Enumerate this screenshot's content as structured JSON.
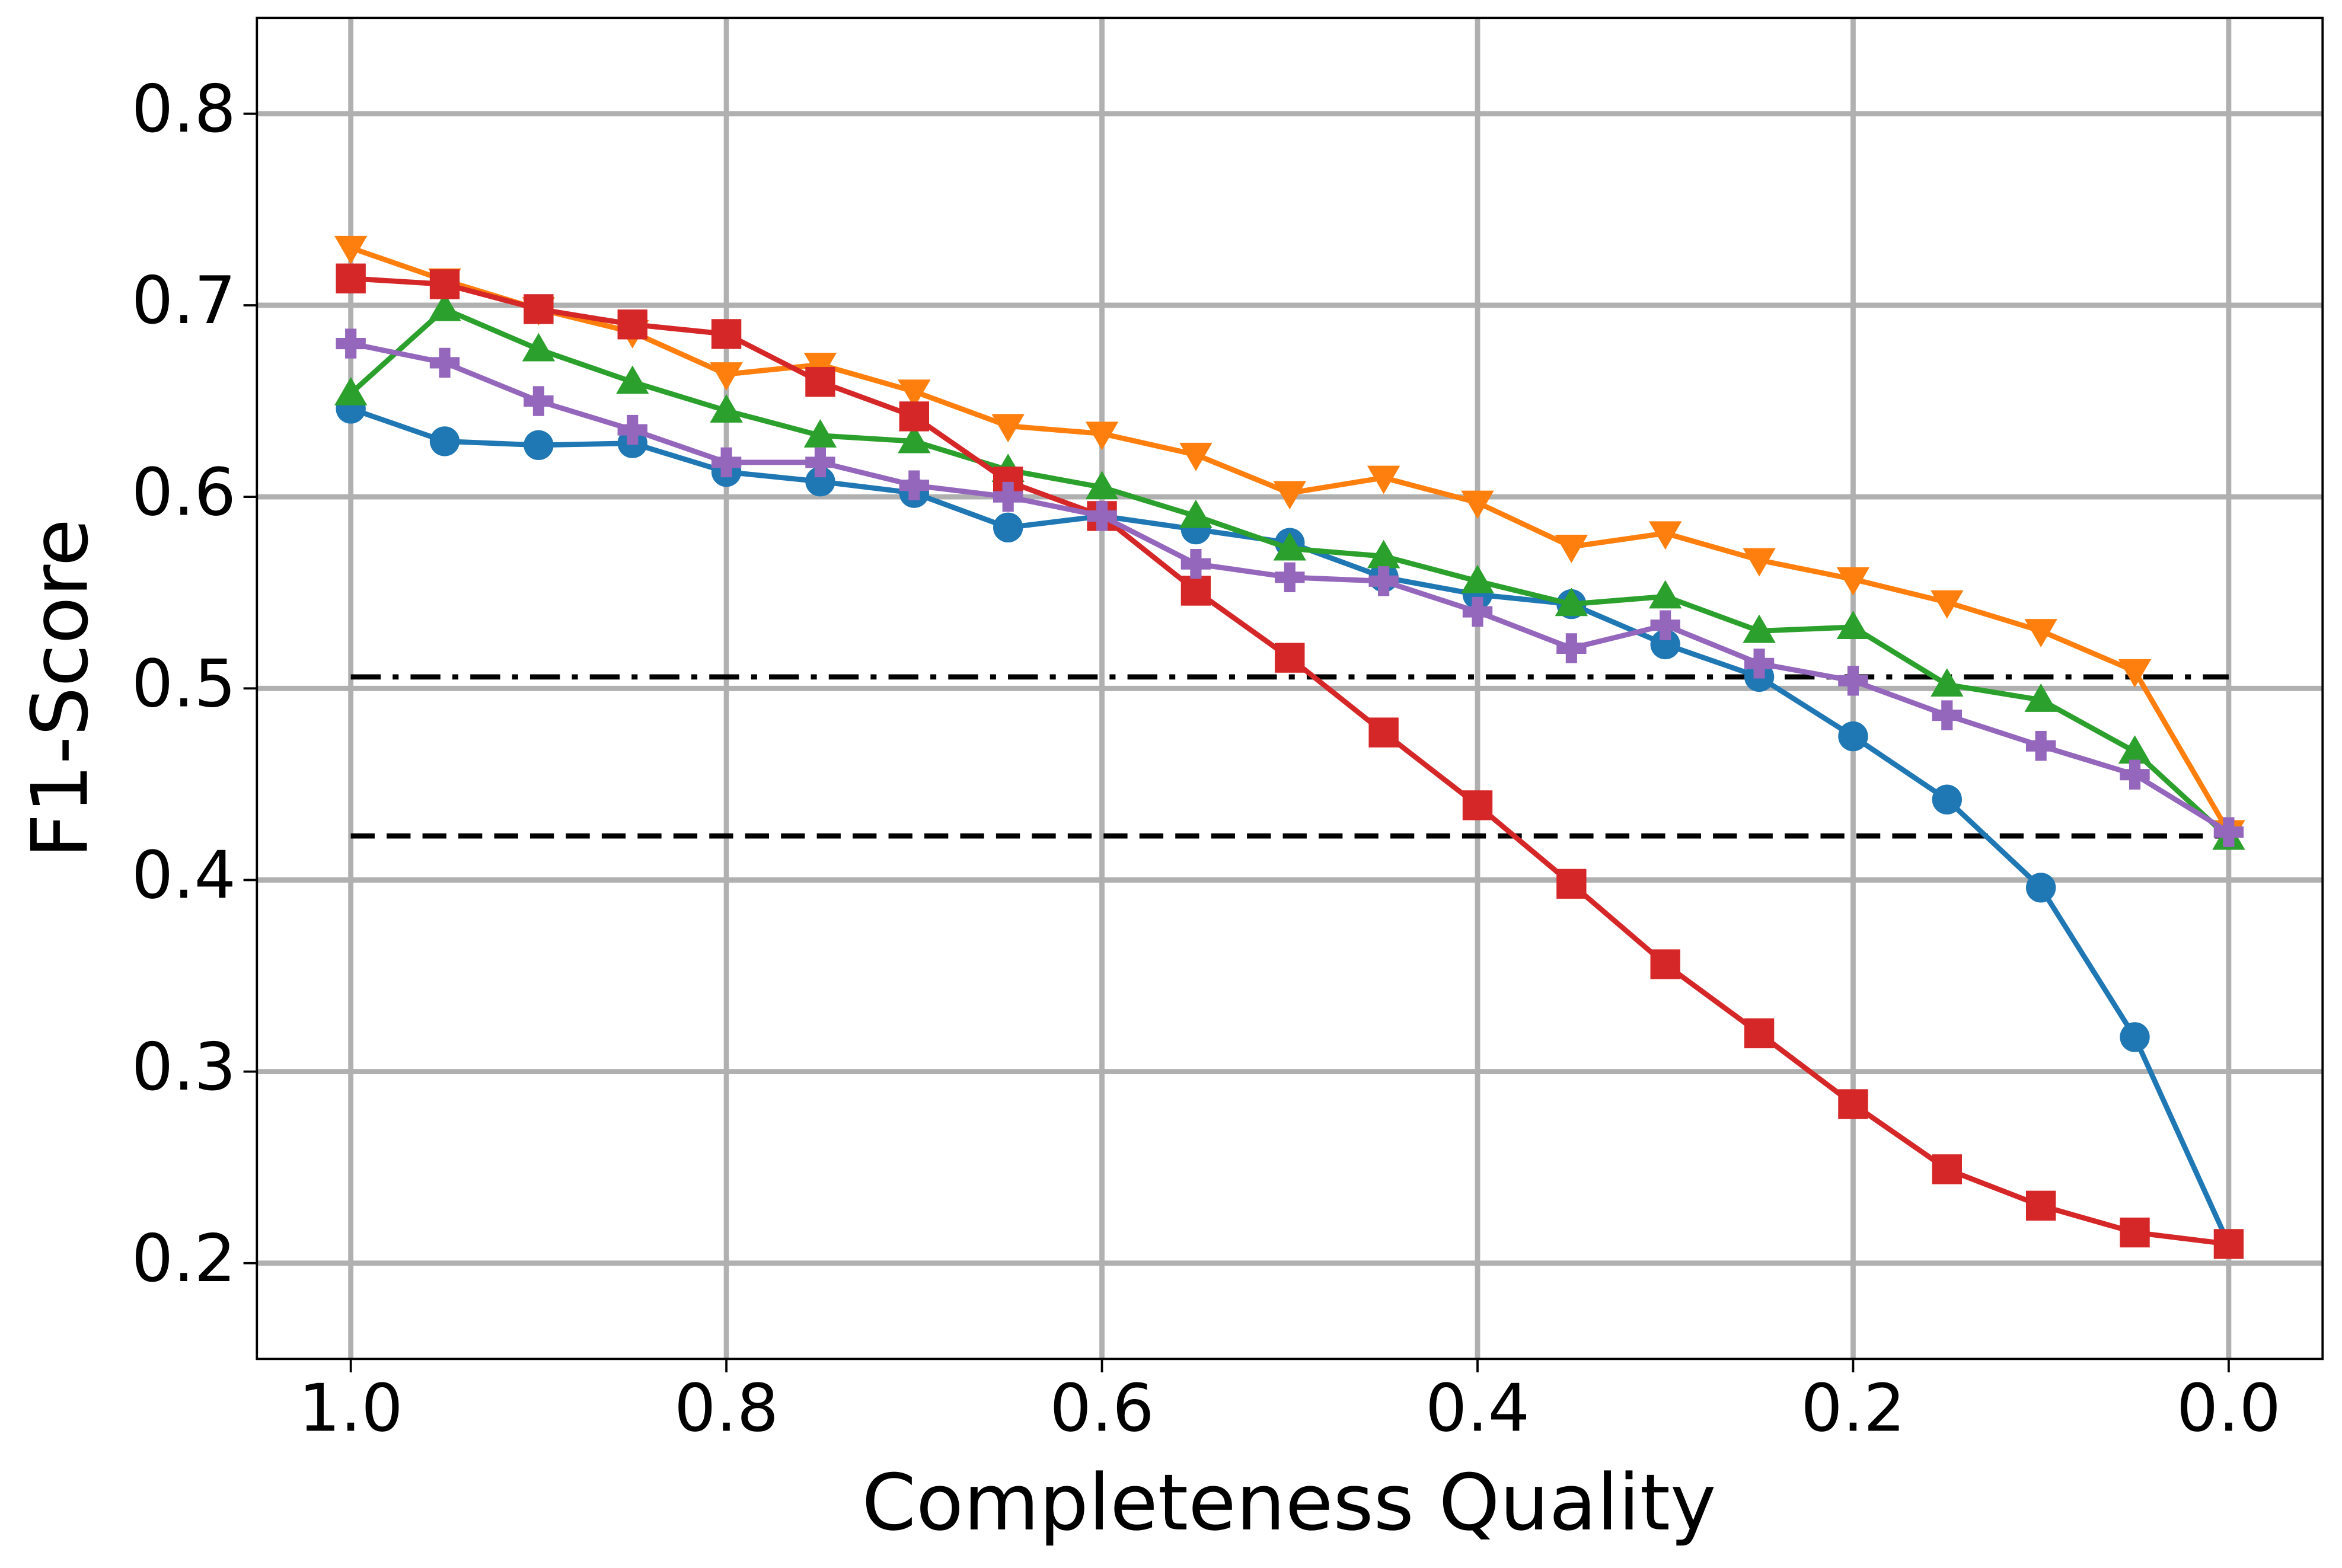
{
  "chart_data": {
    "type": "line",
    "x_label": "Completeness Quality",
    "y_label": "F1-Score",
    "x": [
      1,
      0.95,
      0.9,
      0.85,
      0.8,
      0.75,
      0.7,
      0.65,
      0.6,
      0.55,
      0.5,
      0.45,
      0.4,
      0.35,
      0.3,
      0.25,
      0.2,
      0.15,
      0.1,
      0.05,
      0
    ],
    "series": [
      {
        "color": "#1f77b4",
        "marker": "circle",
        "values": [
          0.646,
          0.629,
          0.627,
          0.628,
          0.613,
          0.608,
          0.602,
          0.584,
          0.59,
          0.583,
          0.576,
          0.558,
          0.549,
          0.544,
          0.523,
          0.506,
          0.475,
          0.442,
          0.396,
          0.318,
          0.21
        ]
      },
      {
        "color": "#ff7f0e",
        "marker": "triangle-down",
        "values": [
          0.73,
          0.713,
          0.698,
          0.686,
          0.664,
          0.669,
          0.655,
          0.637,
          0.633,
          0.622,
          0.602,
          0.61,
          0.597,
          0.574,
          0.581,
          0.567,
          0.557,
          0.545,
          0.53,
          0.509,
          0.425
        ]
      },
      {
        "color": "#2ca02c",
        "marker": "triangle-up",
        "values": [
          0.654,
          0.698,
          0.677,
          0.66,
          0.645,
          0.632,
          0.629,
          0.614,
          0.605,
          0.59,
          0.573,
          0.569,
          0.556,
          0.544,
          0.548,
          0.53,
          0.532,
          0.502,
          0.494,
          0.467,
          0.422
        ]
      },
      {
        "color": "#d62728",
        "marker": "square",
        "values": [
          0.714,
          0.711,
          0.698,
          0.69,
          0.685,
          0.66,
          0.642,
          0.608,
          0.59,
          0.551,
          0.516,
          0.477,
          0.439,
          0.398,
          0.356,
          0.32,
          0.283,
          0.249,
          0.23,
          0.216,
          0.21
        ]
      },
      {
        "color": "#9467bd",
        "marker": "plus",
        "values": [
          0.68,
          0.67,
          0.65,
          0.635,
          0.618,
          0.618,
          0.606,
          0.6,
          0.59,
          0.565,
          0.558,
          0.556,
          0.54,
          0.521,
          0.533,
          0.513,
          0.504,
          0.486,
          0.47,
          0.455,
          0.425
        ]
      }
    ],
    "hlines": [
      {
        "value": 0.506,
        "style": "dashdot",
        "color": "#000000",
        "xrange": [
          1,
          0
        ]
      },
      {
        "value": 0.423,
        "style": "dashed",
        "color": "#000000",
        "xrange": [
          1,
          0
        ]
      }
    ],
    "xlim": [
      1.05,
      -0.05
    ],
    "ylim": [
      0.15,
      0.85
    ],
    "xticks": [
      {
        "value": 1,
        "label": "1.0"
      },
      0.8,
      0.6,
      0.4,
      0.2,
      {
        "value": 0,
        "label": "0.0"
      }
    ],
    "yticks": [
      0.2,
      0.3,
      0.4,
      0.5,
      0.6,
      0.7,
      0.8
    ],
    "grid": true
  }
}
